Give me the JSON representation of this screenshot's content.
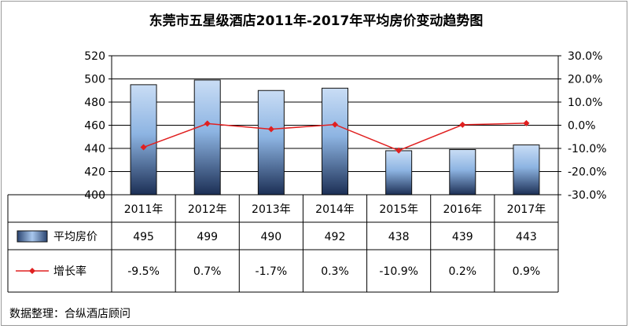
{
  "chart_data": {
    "type": "bar+line",
    "title": "东莞市五星级酒店2011年-2017年平均房价变动趋势图",
    "categories": [
      "2011年",
      "2012年",
      "2013年",
      "2014年",
      "2015年",
      "2016年",
      "2017年"
    ],
    "series": [
      {
        "name": "平均房价",
        "type": "bar",
        "axis": "left",
        "values": [
          495,
          499,
          490,
          492,
          438,
          439,
          443
        ],
        "value_labels": [
          "495",
          "499",
          "490",
          "492",
          "438",
          "439",
          "443"
        ],
        "color": "#8db4e2"
      },
      {
        "name": "增长率",
        "type": "line",
        "axis": "right",
        "values": [
          -9.5,
          0.7,
          -1.7,
          0.3,
          -10.9,
          0.2,
          0.9
        ],
        "value_labels": [
          "-9.5%",
          "0.7%",
          "-1.7%",
          "0.3%",
          "-10.9%",
          "0.2%",
          "0.9%"
        ],
        "color": "#e02020"
      }
    ],
    "y_left": {
      "ylim": [
        400,
        520
      ],
      "ticks": [
        "400",
        "420",
        "440",
        "460",
        "480",
        "500",
        "520"
      ]
    },
    "y_right": {
      "ylim": [
        -30,
        30
      ],
      "ticks": [
        "-30.0%",
        "-20.0%",
        "-10.0%",
        "0.0%",
        "10.0%",
        "20.0%",
        "30.0%"
      ]
    },
    "grid": true,
    "legend": "data-table"
  },
  "source_note": "数据整理：合纵酒店顾问"
}
